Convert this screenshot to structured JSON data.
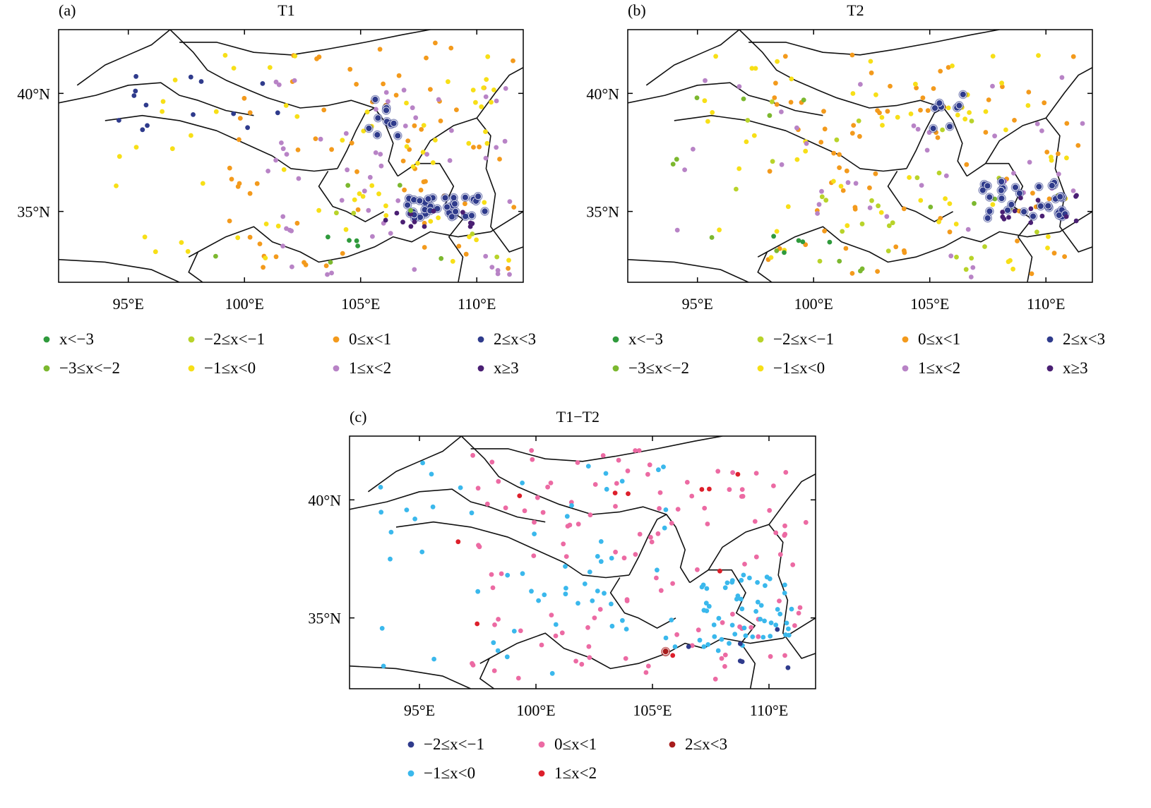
{
  "panels": [
    {
      "id": "a",
      "letter": "(a)",
      "title": "T1",
      "y_ticks": [
        "40°N",
        "35°N"
      ],
      "x_ticks": [
        "95°E",
        "100°E",
        "105°E",
        "110°E"
      ],
      "legend": [
        {
          "label": "x<−3",
          "color": "#2f9a3c"
        },
        {
          "label": "−2≤x<−1",
          "color": "#b8d32a"
        },
        {
          "label": "0≤x<1",
          "color": "#f39a1c"
        },
        {
          "label": "2≤x<3",
          "color": "#2f3b8c"
        },
        {
          "label": "−3≤x<−2",
          "color": "#7cb82f"
        },
        {
          "label": "−1≤x<0",
          "color": "#f7df17"
        },
        {
          "label": "1≤x<2",
          "color": "#b883c6"
        },
        {
          "label": "x≥3",
          "color": "#4a1f73"
        }
      ]
    },
    {
      "id": "b",
      "letter": "(b)",
      "title": "T2",
      "y_ticks": [
        "40°N",
        "35°N"
      ],
      "x_ticks": [
        "95°E",
        "100°E",
        "105°E",
        "110°E"
      ],
      "legend": [
        {
          "label": "x<−3",
          "color": "#2f9a3c"
        },
        {
          "label": "−2≤x<−1",
          "color": "#b8d32a"
        },
        {
          "label": "0≤x<1",
          "color": "#f39a1c"
        },
        {
          "label": "2≤x<3",
          "color": "#2f3b8c"
        },
        {
          "label": "−3≤x<−2",
          "color": "#7cb82f"
        },
        {
          "label": "−1≤x<0",
          "color": "#f7df17"
        },
        {
          "label": "1≤x<2",
          "color": "#b883c6"
        },
        {
          "label": "x≥3",
          "color": "#4a1f73"
        }
      ]
    },
    {
      "id": "c",
      "letter": "(c)",
      "title": "T1−T2",
      "y_ticks": [
        "40°N",
        "35°N"
      ],
      "x_ticks": [
        "95°E",
        "100°E",
        "105°E",
        "110°E"
      ],
      "legend": [
        {
          "label": "−2≤x<−1",
          "color": "#2f3b8c"
        },
        {
          "label": "0≤x<1",
          "color": "#ec6aa3"
        },
        {
          "label": "2≤x<3",
          "color": "#a81c1c"
        },
        {
          "label": "−1≤x<0",
          "color": "#3ab8ec"
        },
        {
          "label": "1≤x<2",
          "color": "#dd1f2b"
        }
      ]
    }
  ]
}
